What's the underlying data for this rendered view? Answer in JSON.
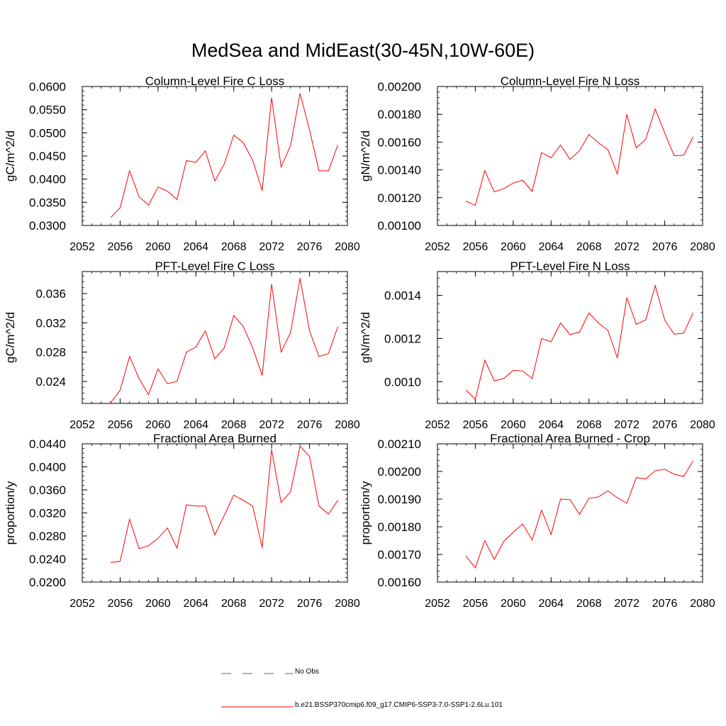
{
  "page": {
    "title": "MedSea and MidEast(30-45N,10W-60E)"
  },
  "legend": [
    {
      "label": "No Obs",
      "color": "#4b5cc4",
      "dash": true
    },
    {
      "label": "b.e21.BSSP370cmip6.f09_g17.CMIP6-SSP3-7.0-SSP1-2.6Lu.101",
      "color": "#ff0000",
      "dash": false
    }
  ],
  "chart_data": [
    {
      "type": "line",
      "title": "Column-Level Fire C Loss",
      "ylabel": "gC/m^2/d",
      "xlim": [
        2052,
        2080
      ],
      "ylim": [
        0.03,
        0.06
      ],
      "xticks": [
        "2052",
        "2056",
        "2060",
        "2064",
        "2068",
        "2072",
        "2076",
        "2080"
      ],
      "yticks": [
        "0.0300",
        "0.0350",
        "0.0400",
        "0.0450",
        "0.0500",
        "0.0550",
        "0.0600"
      ],
      "x": [
        2055,
        2056,
        2057,
        2058,
        2059,
        2060,
        2061,
        2062,
        2063,
        2064,
        2065,
        2066,
        2067,
        2068,
        2069,
        2070,
        2071,
        2072,
        2073,
        2074,
        2075,
        2076,
        2077,
        2078,
        2079
      ],
      "series": [
        {
          "color": "#ff0000",
          "values": [
            0.0317,
            0.0338,
            0.0418,
            0.0362,
            0.0344,
            0.0383,
            0.0374,
            0.0356,
            0.044,
            0.0436,
            0.0461,
            0.0396,
            0.0433,
            0.0495,
            0.0479,
            0.0441,
            0.0375,
            0.0576,
            0.0426,
            0.0473,
            0.0585,
            0.0506,
            0.0418,
            0.0418,
            0.0474
          ]
        }
      ]
    },
    {
      "type": "line",
      "title": "Column-Level Fire N Loss",
      "ylabel": "gN/m^2/d",
      "xlim": [
        2052,
        2080
      ],
      "ylim": [
        0.001,
        0.002
      ],
      "xticks": [
        "2052",
        "2056",
        "2060",
        "2064",
        "2068",
        "2072",
        "2076",
        "2080"
      ],
      "yticks": [
        "0.00100",
        "0.00120",
        "0.00140",
        "0.00160",
        "0.00180",
        "0.00200"
      ],
      "x": [
        2055,
        2056,
        2057,
        2058,
        2059,
        2060,
        2061,
        2062,
        2063,
        2064,
        2065,
        2066,
        2067,
        2068,
        2069,
        2070,
        2071,
        2072,
        2073,
        2074,
        2075,
        2076,
        2077,
        2078,
        2079
      ],
      "series": [
        {
          "color": "#ff0000",
          "values": [
            0.001175,
            0.001145,
            0.001395,
            0.001242,
            0.001265,
            0.001305,
            0.001325,
            0.001245,
            0.001525,
            0.001487,
            0.001578,
            0.001475,
            0.001538,
            0.001655,
            0.001595,
            0.001545,
            0.00137,
            0.0018,
            0.001557,
            0.001622,
            0.001838,
            0.001665,
            0.001502,
            0.001505,
            0.001637
          ]
        }
      ]
    },
    {
      "type": "line",
      "title": "PFT-Level Fire C Loss",
      "ylabel": "gC/m^2/d",
      "xlim": [
        2052,
        2080
      ],
      "ylim": [
        0.021,
        0.039
      ],
      "xticks": [
        "2052",
        "2056",
        "2060",
        "2064",
        "2068",
        "2072",
        "2076",
        "2080"
      ],
      "yticks": [
        "0.024",
        "0.028",
        "0.032",
        "0.036"
      ],
      "x": [
        2055,
        2056,
        2057,
        2058,
        2059,
        2060,
        2061,
        2062,
        2063,
        2064,
        2065,
        2066,
        2067,
        2068,
        2069,
        2070,
        2071,
        2072,
        2073,
        2074,
        2075,
        2076,
        2077,
        2078,
        2079
      ],
      "series": [
        {
          "color": "#ff0000",
          "values": [
            0.0211,
            0.0228,
            0.0274,
            0.0244,
            0.0222,
            0.0257,
            0.0237,
            0.024,
            0.028,
            0.0287,
            0.0309,
            0.0271,
            0.0286,
            0.033,
            0.0315,
            0.0286,
            0.0248,
            0.0373,
            0.028,
            0.0307,
            0.0381,
            0.0309,
            0.0274,
            0.0278,
            0.0315
          ]
        }
      ]
    },
    {
      "type": "line",
      "title": "PFT-Level Fire N Loss",
      "ylabel": "gN/m^2/d",
      "xlim": [
        2052,
        2080
      ],
      "ylim": [
        0.0009,
        0.00151
      ],
      "xticks": [
        "2052",
        "2056",
        "2060",
        "2064",
        "2068",
        "2072",
        "2076",
        "2080"
      ],
      "yticks": [
        "0.0010",
        "0.0012",
        "0.0014"
      ],
      "x": [
        2055,
        2056,
        2057,
        2058,
        2059,
        2060,
        2061,
        2062,
        2063,
        2064,
        2065,
        2066,
        2067,
        2068,
        2069,
        2070,
        2071,
        2072,
        2073,
        2074,
        2075,
        2076,
        2077,
        2078,
        2079
      ],
      "series": [
        {
          "color": "#ff0000",
          "values": [
            0.000962,
            0.00092,
            0.0011,
            0.001005,
            0.001015,
            0.001053,
            0.00105,
            0.001015,
            0.0012,
            0.001185,
            0.001272,
            0.001218,
            0.00123,
            0.001318,
            0.001272,
            0.001238,
            0.00111,
            0.00139,
            0.001265,
            0.001287,
            0.001445,
            0.001285,
            0.00122,
            0.001225,
            0.00132
          ]
        }
      ]
    },
    {
      "type": "line",
      "title": "Fractional Area Burned",
      "ylabel": "proportion/y",
      "xlim": [
        2052,
        2080
      ],
      "ylim": [
        0.02,
        0.044
      ],
      "xticks": [
        "2052",
        "2056",
        "2060",
        "2064",
        "2068",
        "2072",
        "2076",
        "2080"
      ],
      "yticks": [
        "0.0200",
        "0.0240",
        "0.0280",
        "0.0320",
        "0.0360",
        "0.0400",
        "0.0440"
      ],
      "x": [
        2055,
        2056,
        2057,
        2058,
        2059,
        2060,
        2061,
        2062,
        2063,
        2064,
        2065,
        2066,
        2067,
        2068,
        2069,
        2070,
        2071,
        2072,
        2073,
        2074,
        2075,
        2076,
        2077,
        2078,
        2079
      ],
      "series": [
        {
          "color": "#ff0000",
          "values": [
            0.0234,
            0.0236,
            0.0309,
            0.0258,
            0.0263,
            0.0276,
            0.0294,
            0.0259,
            0.0334,
            0.0332,
            0.0332,
            0.0282,
            0.0316,
            0.0351,
            0.0342,
            0.0332,
            0.026,
            0.043,
            0.0338,
            0.0357,
            0.0436,
            0.0418,
            0.0332,
            0.0318,
            0.0342
          ]
        }
      ]
    },
    {
      "type": "line",
      "title": "Fractional Area Burned - Crop",
      "ylabel": "proportion/y",
      "xlim": [
        2052,
        2080
      ],
      "ylim": [
        0.0016,
        0.0021
      ],
      "xticks": [
        "2052",
        "2056",
        "2060",
        "2064",
        "2068",
        "2072",
        "2076",
        "2080"
      ],
      "yticks": [
        "0.00160",
        "0.00170",
        "0.00180",
        "0.00190",
        "0.00200",
        "0.00210"
      ],
      "x": [
        2055,
        2056,
        2057,
        2058,
        2059,
        2060,
        2061,
        2062,
        2063,
        2064,
        2065,
        2066,
        2067,
        2068,
        2069,
        2070,
        2071,
        2072,
        2073,
        2074,
        2075,
        2076,
        2077,
        2078,
        2079
      ],
      "series": [
        {
          "color": "#ff0000",
          "values": [
            0.001694,
            0.001652,
            0.00175,
            0.001682,
            0.001747,
            0.00178,
            0.00181,
            0.001752,
            0.00186,
            0.001772,
            0.0019,
            0.001898,
            0.001845,
            0.001903,
            0.001908,
            0.00193,
            0.001905,
            0.001885,
            0.001978,
            0.001973,
            0.002003,
            0.002008,
            0.00199,
            0.001982,
            0.002038
          ]
        }
      ]
    }
  ]
}
